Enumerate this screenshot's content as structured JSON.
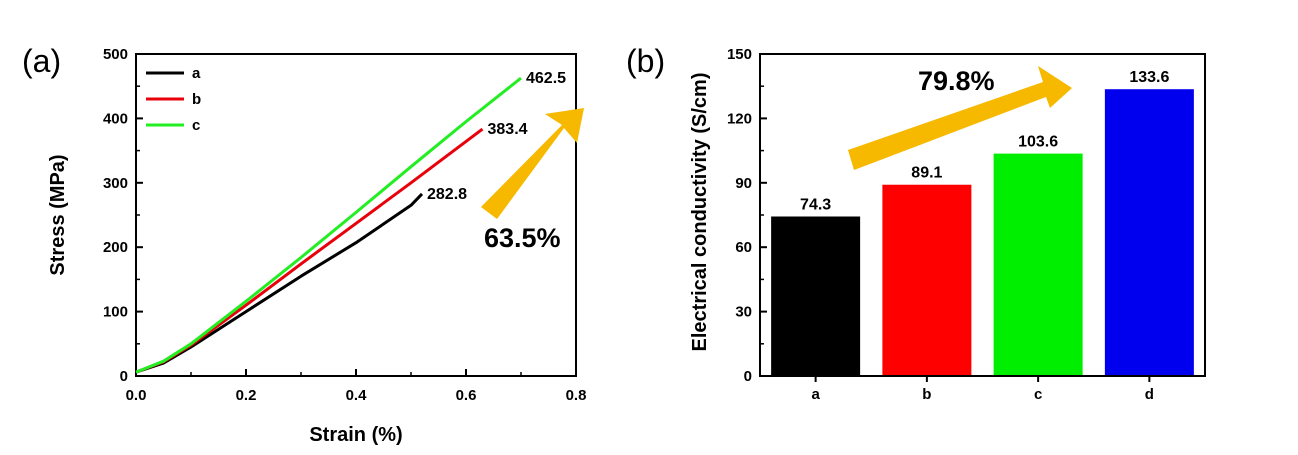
{
  "chart_data": [
    {
      "type": "line",
      "panel_label": "(a)",
      "xlabel": "Strain (%)",
      "ylabel": "Stress (MPa)",
      "xlim": [
        0.0,
        0.8
      ],
      "ylim": [
        0,
        500
      ],
      "xticks": [
        "0.0",
        "0.2",
        "0.4",
        "0.6",
        "0.8"
      ],
      "yticks": [
        "0",
        "100",
        "200",
        "300",
        "400",
        "500"
      ],
      "legend": "top-left",
      "series": [
        {
          "name": "a",
          "color": "#000000",
          "end_label": "282.8",
          "x": [
            0.0,
            0.05,
            0.1,
            0.2,
            0.3,
            0.4,
            0.5,
            0.52
          ],
          "y": [
            6,
            20,
            45,
            100,
            155,
            207,
            265,
            282.8
          ]
        },
        {
          "name": "b",
          "color": "#e8000b",
          "end_label": "383.4",
          "x": [
            0.0,
            0.05,
            0.1,
            0.2,
            0.3,
            0.4,
            0.5,
            0.63
          ],
          "y": [
            6,
            22,
            48,
            110,
            174,
            237,
            300,
            383.4
          ]
        },
        {
          "name": "c",
          "color": "#22ee22",
          "end_label": "462.5",
          "x": [
            0.0,
            0.05,
            0.1,
            0.2,
            0.3,
            0.4,
            0.5,
            0.6,
            0.7
          ],
          "y": [
            6,
            23,
            50,
            116,
            184,
            254,
            325,
            395,
            462.5
          ]
        }
      ],
      "annotation": {
        "text": "63.5%",
        "arrow_color": "#f7b800"
      }
    },
    {
      "type": "bar",
      "panel_label": "(b)",
      "xlabel": "",
      "ylabel": "Electrical conductivity (S/cm)",
      "categories": [
        "a",
        "b",
        "c",
        "d"
      ],
      "values": [
        74.3,
        89.1,
        103.6,
        133.6
      ],
      "value_labels": [
        "74.3",
        "89.1",
        "103.6",
        "133.6"
      ],
      "colors": [
        "#000000",
        "#ff0000",
        "#00ee00",
        "#0000ee"
      ],
      "ylim": [
        0,
        150
      ],
      "yticks": [
        "0",
        "30",
        "60",
        "90",
        "120",
        "150"
      ],
      "annotation": {
        "text": "79.8%",
        "arrow_color": "#f7b800"
      }
    }
  ]
}
